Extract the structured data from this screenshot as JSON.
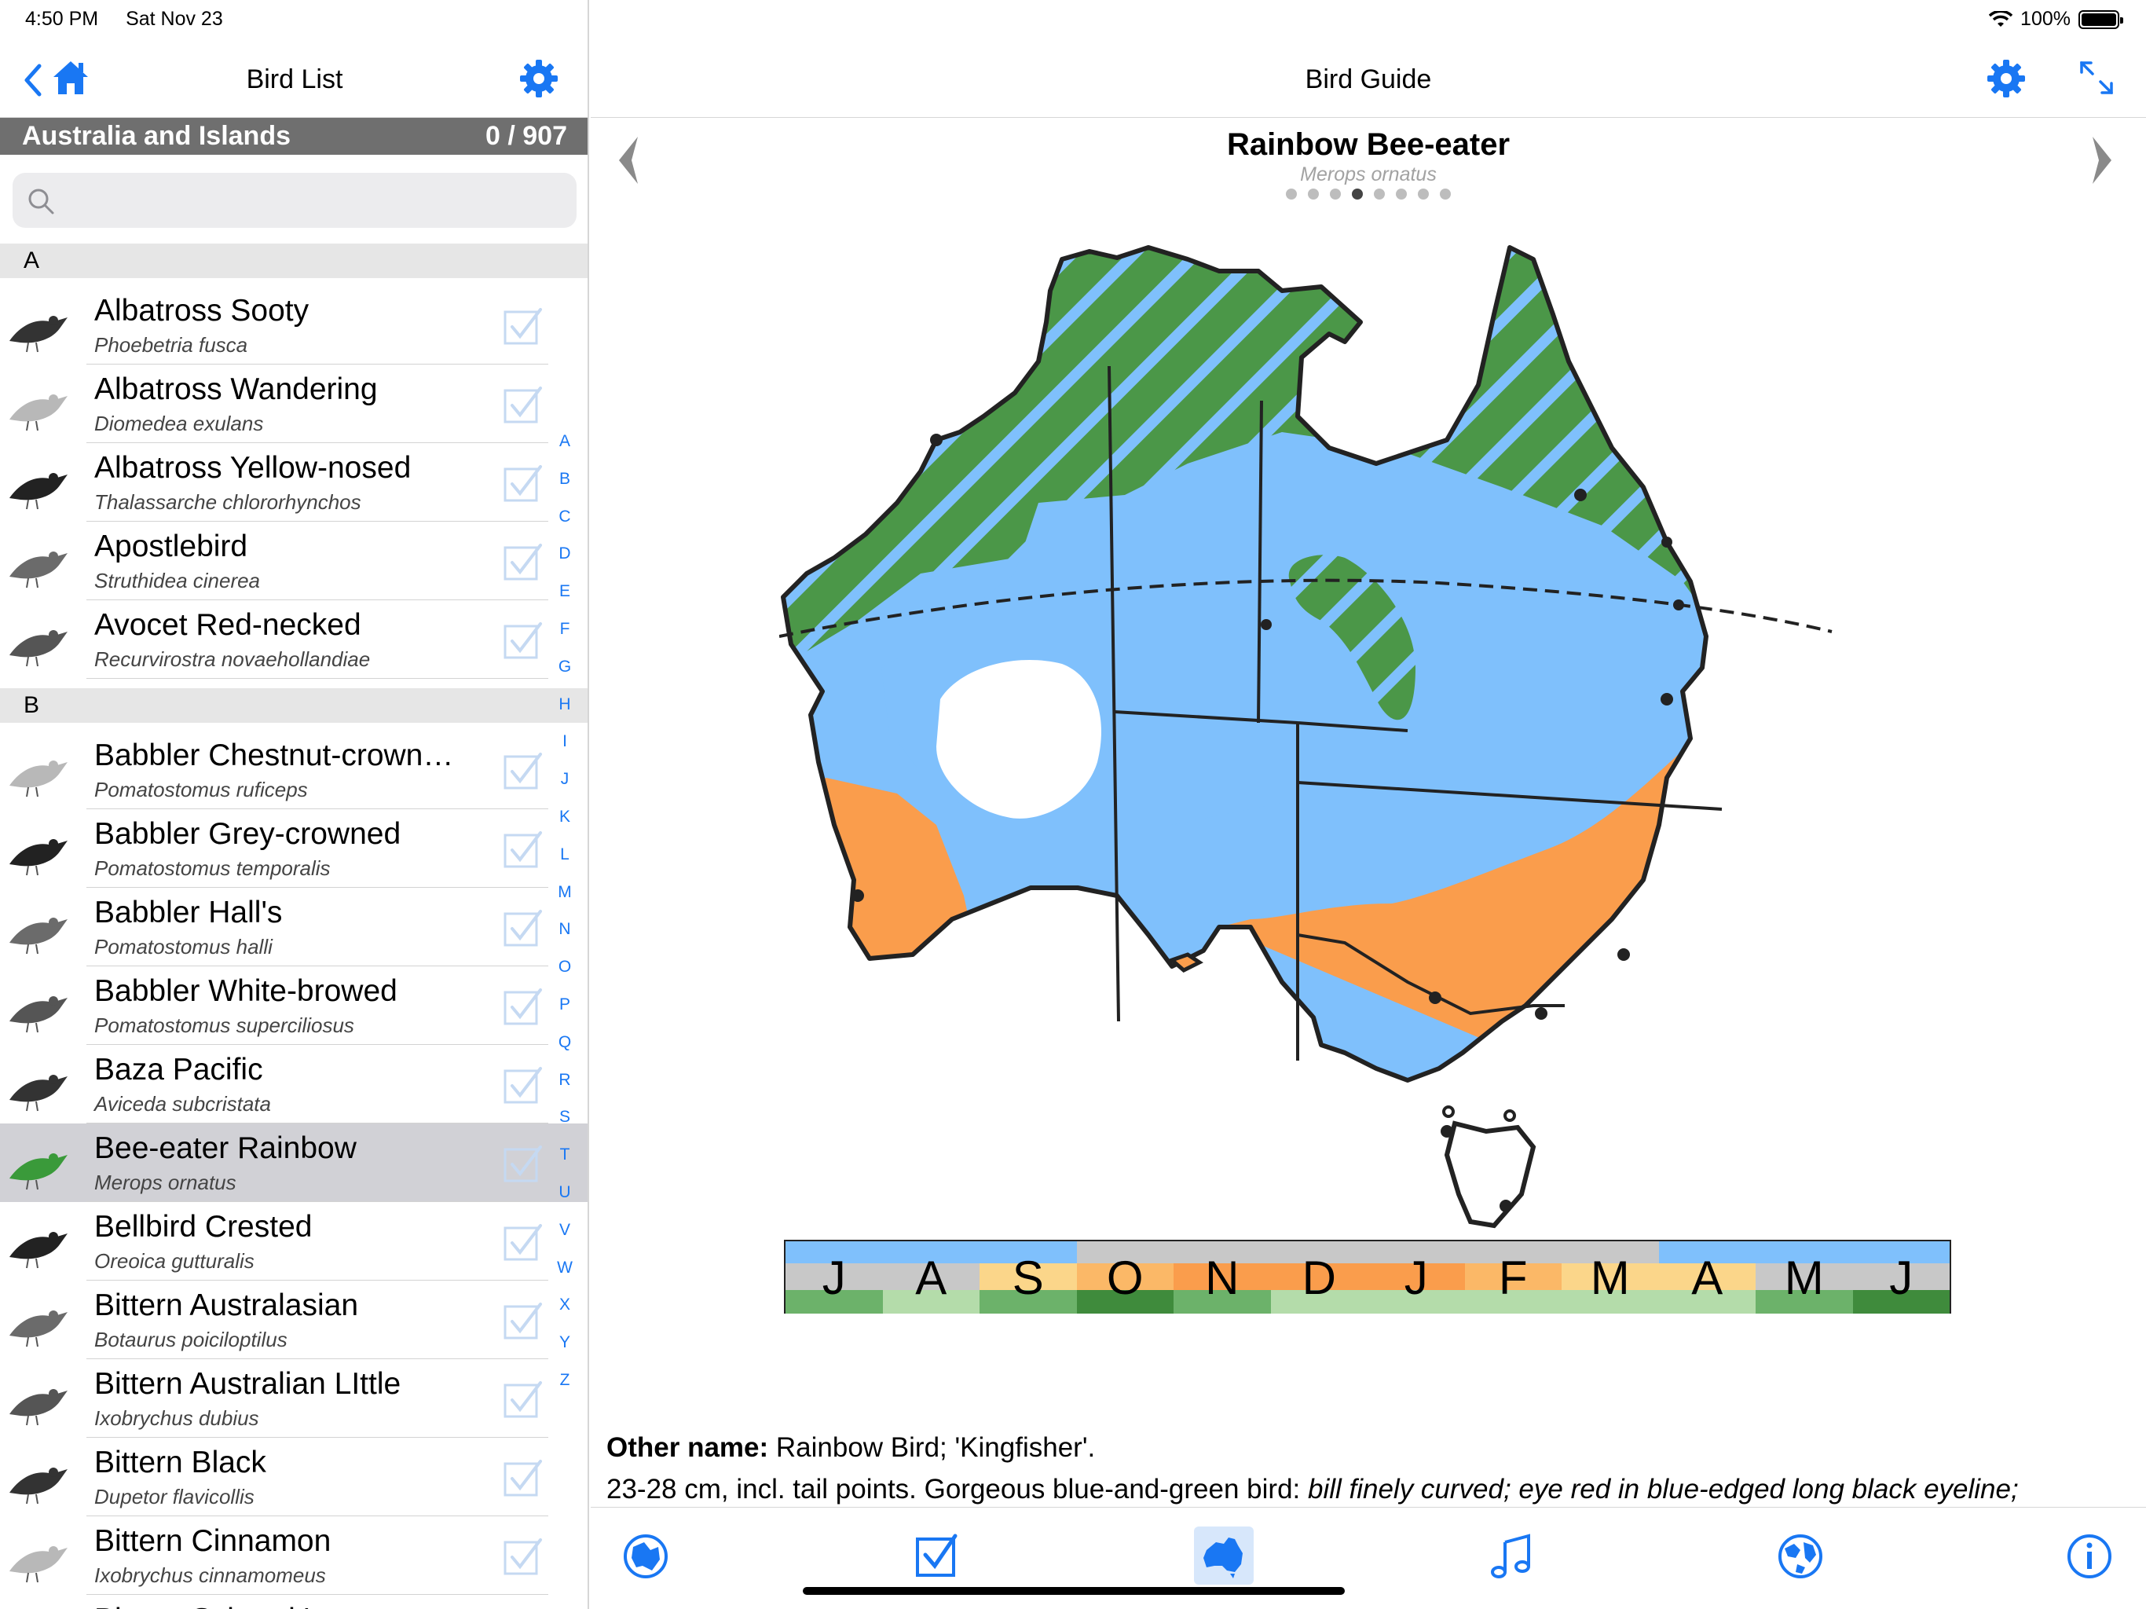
{
  "status": {
    "time": "4:50 PM",
    "date": "Sat Nov 23",
    "battery": "100%"
  },
  "left_pane": {
    "title": "Bird List",
    "region": "Australia and Islands",
    "count": "0 / 907",
    "search_placeholder": "",
    "sections": [
      {
        "letter": "A",
        "birds": [
          {
            "name": "Albatross Sooty",
            "sci": "Phoebetria fusca",
            "icon": "albatross-sooty-thumbnail"
          },
          {
            "name": "Albatross Wandering",
            "sci": "Diomedea exulans",
            "icon": "albatross-wandering-thumbnail"
          },
          {
            "name": "Albatross Yellow-nosed",
            "sci": "Thalassarche chlororhynchos",
            "icon": "albatross-yellow-nosed-thumbnail"
          },
          {
            "name": "Apostlebird",
            "sci": "Struthidea cinerea",
            "icon": "apostlebird-thumbnail"
          },
          {
            "name": "Avocet Red-necked",
            "sci": "Recurvirostra novaehollandiae",
            "icon": "avocet-thumbnail"
          }
        ]
      },
      {
        "letter": "B",
        "birds": [
          {
            "name": "Babbler Chestnut-crown…",
            "sci": "Pomatostomus ruficeps",
            "icon": "babbler-thumbnail"
          },
          {
            "name": "Babbler Grey-crowned",
            "sci": "Pomatostomus temporalis",
            "icon": "babbler-thumbnail"
          },
          {
            "name": "Babbler Hall's",
            "sci": "Pomatostomus halli",
            "icon": "babbler-thumbnail"
          },
          {
            "name": "Babbler White-browed",
            "sci": "Pomatostomus superciliosus",
            "icon": "babbler-thumbnail"
          },
          {
            "name": "Baza Pacific",
            "sci": "Aviceda subcristata",
            "icon": "baza-thumbnail"
          },
          {
            "name": "Bee-eater Rainbow",
            "sci": "Merops ornatus",
            "icon": "bee-eater-thumbnail",
            "selected": true
          },
          {
            "name": "Bellbird Crested",
            "sci": "Oreoica gutturalis",
            "icon": "bellbird-thumbnail"
          },
          {
            "name": "Bittern Australasian",
            "sci": "Botaurus poiciloptilus",
            "icon": "bittern-thumbnail"
          },
          {
            "name": "Bittern Australian LIttle",
            "sci": "Ixobrychus dubius",
            "icon": "bittern-thumbnail"
          },
          {
            "name": "Bittern Black",
            "sci": "Dupetor flavicollis",
            "icon": "bittern-thumbnail"
          },
          {
            "name": "Bittern Cinnamon",
            "sci": "Ixobrychus cinnamomeus",
            "icon": "bittern-thumbnail"
          },
          {
            "name": "Bittern Schrenk's",
            "sci": "",
            "icon": "bittern-thumbnail"
          }
        ]
      }
    ],
    "index_letters": [
      "A",
      "B",
      "C",
      "D",
      "E",
      "F",
      "G",
      "H",
      "I",
      "J",
      "K",
      "L",
      "M",
      "N",
      "O",
      "P",
      "Q",
      "R",
      "S",
      "T",
      "U",
      "V",
      "W",
      "X",
      "Y",
      "Z"
    ]
  },
  "right_pane": {
    "title": "Bird Guide",
    "species": "Rainbow Bee-eater",
    "scientific": "Merops ornatus",
    "page_dots": 8,
    "active_dot": 4,
    "map_colors": {
      "resident": "#4b9748",
      "summer_breeding": "#fa9d4c",
      "nonbreeding": "#7fc0fc",
      "absent": "#ffffff"
    },
    "months": [
      "J",
      "A",
      "S",
      "O",
      "N",
      "D",
      "J",
      "F",
      "M",
      "A",
      "M",
      "J"
    ],
    "description": {
      "label": "Other name:",
      "other_names": "Rainbow Bird; 'Kingfisher'.",
      "line2_plain": "23-28 cm, incl. tail points. Gorgeous blue-and-green bird: ",
      "line2_italic": "bill finely curved; eye red in blue-edged long black eyeline;"
    },
    "toolbar": [
      "map-globe-icon",
      "checklist-icon",
      "australia-map-icon",
      "music-note-icon",
      "world-globe-icon",
      "info-icon"
    ]
  }
}
